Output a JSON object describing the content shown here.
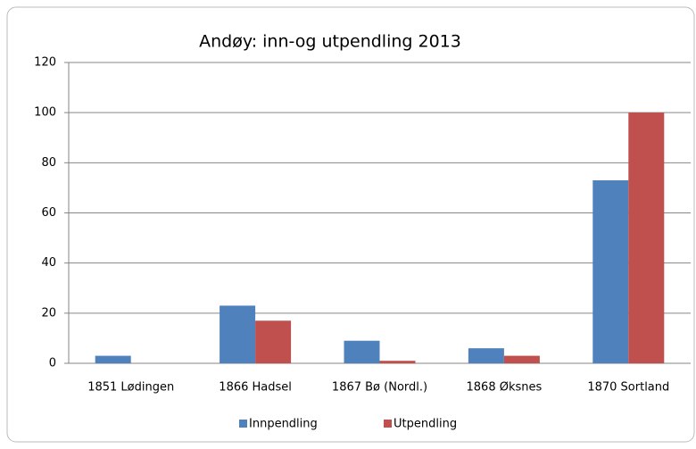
{
  "chart_data": {
    "type": "bar",
    "title": "Andøy: inn-og utpendling 2013",
    "categories": [
      "1851 Lødingen",
      "1866 Hadsel",
      "1867 Bø (Nordl.)",
      "1868 Øksnes",
      "1870 Sortland"
    ],
    "series": [
      {
        "name": "Innpendling",
        "color": "#4f81bd",
        "values": [
          3,
          23,
          9,
          6,
          73
        ]
      },
      {
        "name": "Utpendling",
        "color": "#c0504d",
        "values": [
          0,
          17,
          1,
          3,
          100
        ]
      }
    ],
    "ylim": [
      0,
      120
    ],
    "yticks": [
      0,
      20,
      40,
      60,
      80,
      100,
      120
    ],
    "grid": true,
    "legend": "bottom"
  }
}
